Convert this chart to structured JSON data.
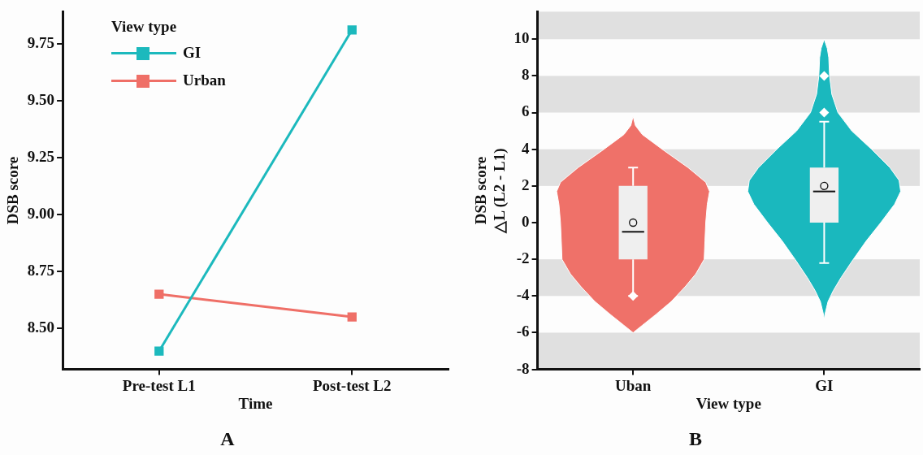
{
  "chart_data": [
    {
      "type": "line",
      "title": "A",
      "xlabel": "Time",
      "ylabel": "DSB score",
      "legend_title": "View type",
      "legend": "top left",
      "marker": "square",
      "categories": [
        "Pre-test L1",
        "Post-test L2"
      ],
      "series": [
        {
          "name": "GI",
          "color": "#1cb9bd",
          "values": [
            8.4,
            9.81
          ]
        },
        {
          "name": "Urban",
          "color": "#ef6f67",
          "values": [
            8.65,
            8.55
          ]
        }
      ],
      "ylim": [
        8.32,
        9.89
      ],
      "yticks": [
        {
          "value": 8.5,
          "label": "8.50"
        },
        {
          "value": 8.75,
          "label": "8.75"
        },
        {
          "value": 9,
          "label": "9.00"
        },
        {
          "value": 9.25,
          "label": "9.25"
        },
        {
          "value": 9.5,
          "label": "9.50"
        },
        {
          "value": 9.75,
          "label": "9.75"
        }
      ]
    },
    {
      "type": "box",
      "title": "B",
      "xlabel": "View type",
      "ylabel": "DSB score\n△L (L2 - L1)",
      "categories": [
        "Uban",
        "GI"
      ],
      "series": [
        {
          "color": "#efefef",
          "boxes": [
            {
              "low": -4,
              "q1": -2,
              "median": -0.5,
              "q3": 2,
              "high": 3,
              "mean": 0,
              "outliers": [
                -4
              ]
            },
            {
              "low": -2.2,
              "q1": 0,
              "median": 1.7,
              "q3": 3,
              "high": 5.5,
              "mean": 2,
              "outliers": [
                6,
                8
              ]
            }
          ]
        }
      ],
      "ylim": [
        -8,
        11.5
      ],
      "yticks": [
        -8,
        -6,
        -4,
        -2,
        0,
        2,
        4,
        6,
        8,
        10
      ],
      "bands": [
        {
          "axis": "y",
          "from": 10,
          "to": 11.5,
          "color": "#e0e0e0"
        },
        {
          "axis": "y",
          "from": 6,
          "to": 8,
          "color": "#e0e0e0"
        },
        {
          "axis": "y",
          "from": 2,
          "to": 4,
          "color": "#e0e0e0"
        },
        {
          "axis": "y",
          "from": -4,
          "to": -2,
          "color": "#e0e0e0"
        },
        {
          "axis": "y",
          "from": -8,
          "to": -6,
          "color": "#e0e0e0"
        }
      ]
    }
  ]
}
